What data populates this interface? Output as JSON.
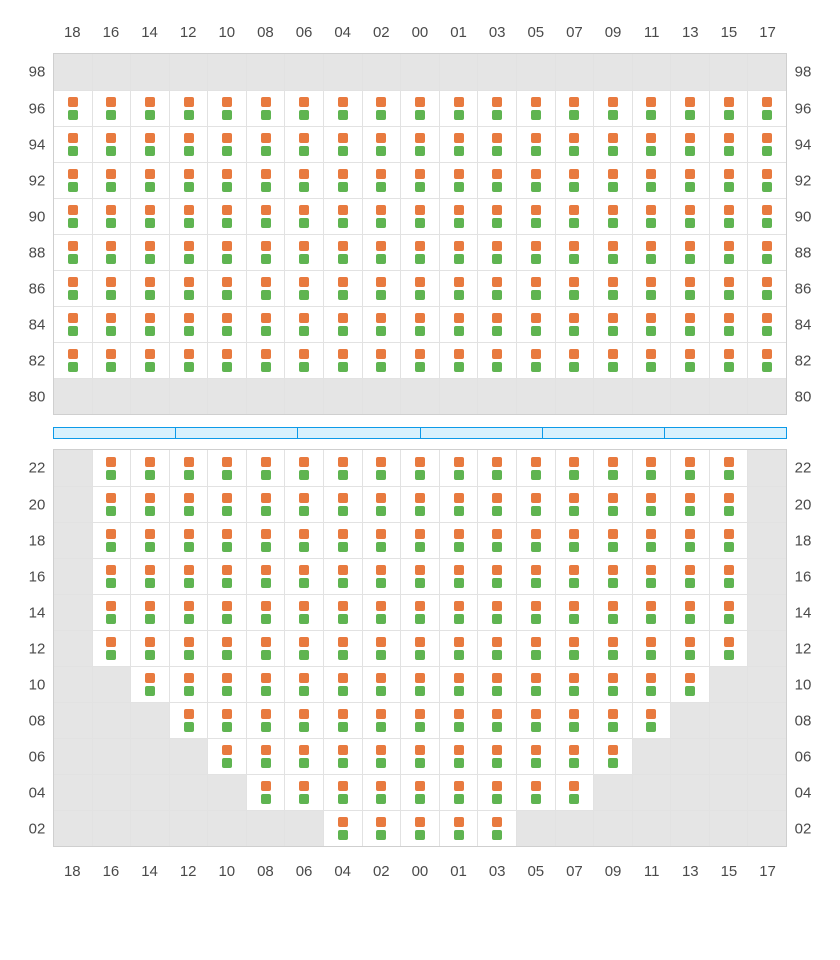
{
  "colors": {
    "seat_top": "#e87a3f",
    "seat_bot": "#5fb451",
    "empty_bg": "#e5e5e5",
    "grid_border": "#cfcfcf",
    "cell_border": "#e2e2e2",
    "divider_border": "#0d9ae8",
    "divider_fill": "#d8f1fd",
    "label_color": "#4a4a4a"
  },
  "columns": [
    "18",
    "16",
    "14",
    "12",
    "10",
    "08",
    "06",
    "04",
    "02",
    "00",
    "01",
    "03",
    "05",
    "07",
    "09",
    "11",
    "13",
    "15",
    "17"
  ],
  "divider_segments": 6,
  "top_section": {
    "rows": [
      {
        "label": "98",
        "pattern": "EEEEEEEEEEEEEEEEEEE"
      },
      {
        "label": "96",
        "pattern": "FFFFFFFFFFFFFFFFFFF"
      },
      {
        "label": "94",
        "pattern": "FFFFFFFFFFFFFFFFFFF"
      },
      {
        "label": "92",
        "pattern": "FFFFFFFFFFFFFFFFFFF"
      },
      {
        "label": "90",
        "pattern": "FFFFFFFFFFFFFFFFFFF"
      },
      {
        "label": "88",
        "pattern": "FFFFFFFFFFFFFFFFFFF"
      },
      {
        "label": "86",
        "pattern": "FFFFFFFFFFFFFFFFFFF"
      },
      {
        "label": "84",
        "pattern": "FFFFFFFFFFFFFFFFFFF"
      },
      {
        "label": "82",
        "pattern": "FFFFFFFFFFFFFFFFFFF"
      },
      {
        "label": "80",
        "pattern": "EEEEEEEEEEEEEEEEEEE"
      }
    ]
  },
  "bottom_section": {
    "rows": [
      {
        "label": "22",
        "pattern": "EFFFFFFFFFFFFFFFFFE"
      },
      {
        "label": "20",
        "pattern": "EFFFFFFFFFFFFFFFFFE"
      },
      {
        "label": "18",
        "pattern": "EFFFFFFFFFFFFFFFFFE"
      },
      {
        "label": "16",
        "pattern": "EFFFFFFFFFFFFFFFFFE"
      },
      {
        "label": "14",
        "pattern": "EFFFFFFFFFFFFFFFFFE"
      },
      {
        "label": "12",
        "pattern": "EFFFFFFFFFFFFFFFFFE"
      },
      {
        "label": "10",
        "pattern": "EEFFFFFFFFFFFFFFFEE"
      },
      {
        "label": "08",
        "pattern": "EEEFFFFFFFFFFFFFEEE"
      },
      {
        "label": "06",
        "pattern": "EEEEFFFFFFFFFFFEEEE"
      },
      {
        "label": "04",
        "pattern": "EEEEEFFFFFFFFFEEEEE"
      },
      {
        "label": "02",
        "pattern": "EEEEEEEFFFFFEEEEEEE"
      }
    ]
  }
}
